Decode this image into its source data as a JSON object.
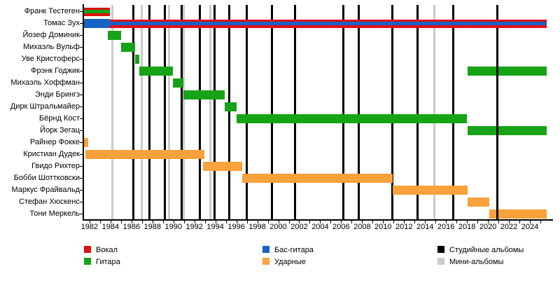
{
  "chart_data": {
    "type": "timeline",
    "description": "Band members timeline (gantt-style) with album release markers",
    "axis": {
      "year_min": 1981.47,
      "year_max": 2025.87,
      "minor_tick_start": 1982,
      "minor_tick_end": 2025,
      "tick_labels": [
        "1982",
        "1984",
        "1986",
        "1988",
        "1990",
        "1992",
        "1994",
        "1996",
        "1998",
        "2000",
        "2002",
        "2004",
        "2006",
        "2008",
        "2010",
        "2012",
        "2014",
        "2016",
        "2018",
        "2020",
        "2022",
        "2024"
      ],
      "label_step": 2
    },
    "colors": {
      "vocals": "#dd1111",
      "guitar": "#17a317",
      "bass": "#1863c6",
      "drums": "#f9a13a",
      "studio": "#000000",
      "mini": "#cbcbcb"
    },
    "rows": [
      {
        "label": "Франк Тестеген",
        "segments": [
          {
            "from": 1981.5,
            "to": 1983.95,
            "role": "vocals",
            "stripe": "guitar"
          }
        ]
      },
      {
        "label": "Томас Зух",
        "segments": [
          {
            "from": 1981.5,
            "to": 1983.95,
            "role": "bass"
          },
          {
            "from": 1983.95,
            "to": 2025.6,
            "role": "vocals",
            "stripe": "bass"
          }
        ]
      },
      {
        "label": "Йозеф Доминик",
        "segments": [
          {
            "from": 1983.75,
            "to": 1985.0,
            "role": "guitar"
          }
        ]
      },
      {
        "label": "Михаэль Вульф",
        "segments": [
          {
            "from": 1985.0,
            "to": 1986.35,
            "role": "guitar"
          }
        ]
      },
      {
        "label": "Уве Кристоферс",
        "segments": [
          {
            "from": 1986.35,
            "to": 1986.75,
            "role": "guitar"
          }
        ]
      },
      {
        "label": "Фрэнк Годжик",
        "segments": [
          {
            "from": 1986.75,
            "to": 1989.95,
            "role": "guitar"
          },
          {
            "from": 2018.05,
            "to": 2025.6,
            "role": "guitar"
          }
        ]
      },
      {
        "label": "Михаэль Хоффман",
        "segments": [
          {
            "from": 1989.95,
            "to": 1990.95,
            "role": "guitar"
          }
        ]
      },
      {
        "label": "Энди Брингз",
        "segments": [
          {
            "from": 1990.95,
            "to": 1994.9,
            "role": "guitar"
          }
        ]
      },
      {
        "label": "Дирк Штральмайер",
        "segments": [
          {
            "from": 1994.9,
            "to": 1996.0,
            "role": "guitar"
          }
        ]
      },
      {
        "label": "Бёрнд Кост",
        "segments": [
          {
            "from": 1996.0,
            "to": 2018.0,
            "role": "guitar"
          }
        ]
      },
      {
        "label": "Йорк Зегац",
        "segments": [
          {
            "from": 2018.05,
            "to": 2025.6,
            "role": "guitar"
          }
        ]
      },
      {
        "label": "Райнер Фокке",
        "segments": [
          {
            "from": 1981.5,
            "to": 1981.85,
            "role": "drums"
          }
        ]
      },
      {
        "label": "Кристиан Дудек",
        "segments": [
          {
            "from": 1981.6,
            "to": 1992.95,
            "role": "drums"
          }
        ]
      },
      {
        "label": "Гвидо Рихтер",
        "segments": [
          {
            "from": 1992.8,
            "to": 1996.55,
            "role": "drums"
          }
        ]
      },
      {
        "label": "Бобби Шоттковски",
        "segments": [
          {
            "from": 1996.55,
            "to": 2010.9,
            "role": "drums"
          }
        ]
      },
      {
        "label": "Маркус Фрайвальд",
        "segments": [
          {
            "from": 2010.9,
            "to": 2018.05,
            "role": "drums"
          }
        ]
      },
      {
        "label": "Стефан Хюскенс",
        "segments": [
          {
            "from": 2018.05,
            "to": 2020.1,
            "role": "drums"
          }
        ]
      },
      {
        "label": "Тони Меркель",
        "segments": [
          {
            "from": 2020.1,
            "to": 2025.6,
            "role": "drums"
          }
        ]
      }
    ],
    "album_lines": {
      "studio_years": [
        1986.2,
        1987.74,
        1989.2,
        1990.8,
        1992.5,
        1993.9,
        1995.3,
        1996.96,
        1999.4,
        2001.6,
        2006.2,
        2007.7,
        2010.85,
        2013.3,
        2016.7,
        2020.9
      ],
      "mini_years": [
        1984.2,
        1987.0,
        1989.6,
        1991.0,
        1993.55,
        2014.9
      ],
      "front_studio_line": 2020.9
    },
    "legend": {
      "columns": [
        {
          "items": [
            {
              "label": "Вокал",
              "role": "vocals"
            },
            {
              "label": "Гитара",
              "role": "guitar"
            }
          ]
        },
        {
          "items": [
            {
              "label": "Бас-гитара",
              "role": "bass"
            },
            {
              "label": "Ударные",
              "role": "drums"
            }
          ]
        },
        {
          "items": [
            {
              "label": "Студийные альбомы",
              "role": "studio"
            },
            {
              "label": "Мини-альбомы",
              "role": "mini"
            }
          ]
        }
      ]
    }
  }
}
